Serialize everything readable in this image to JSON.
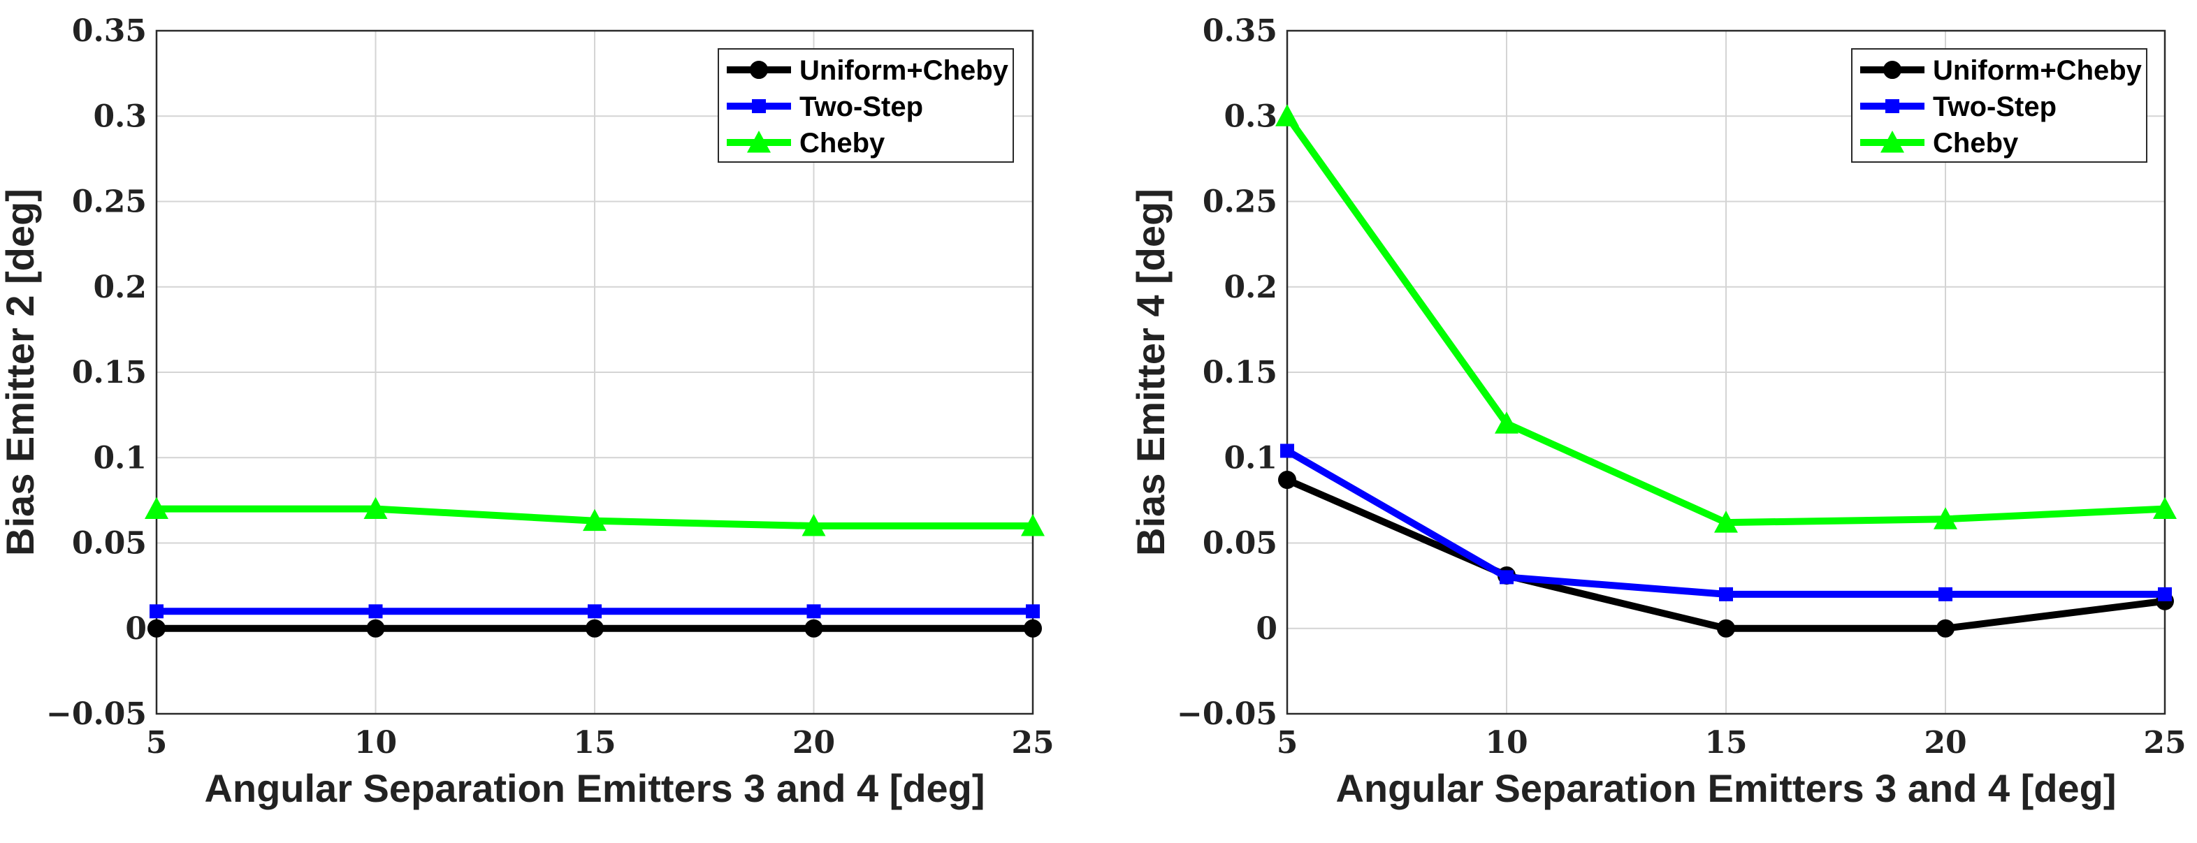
{
  "chart_data": [
    {
      "type": "line",
      "title": "",
      "xlabel": "Angular Separation Emitters 3 and 4 [deg]",
      "ylabel": "Bias Emitter 2 [deg]",
      "xlim": [
        5,
        25
      ],
      "ylim": [
        -0.05,
        0.35
      ],
      "x_ticks": [
        5,
        10,
        15,
        20,
        25
      ],
      "x_tick_labels": [
        "5",
        "10",
        "15",
        "20",
        "25"
      ],
      "y_ticks": [
        -0.05,
        0,
        0.05,
        0.1,
        0.15,
        0.2,
        0.25,
        0.3,
        0.35
      ],
      "y_tick_labels": [
        "−0.05",
        "0",
        "0.05",
        "0.1",
        "0.15",
        "0.2",
        "0.25",
        "0.3",
        "0.35"
      ],
      "grid": true,
      "legend_position": "top-right",
      "x": [
        5,
        10,
        15,
        20,
        25
      ],
      "series": [
        {
          "name": "Uniform+Cheby",
          "color": "#000000",
          "marker": "circle",
          "values": [
            0,
            0,
            0,
            0,
            0
          ]
        },
        {
          "name": "Two-Step",
          "color": "#0000ff",
          "marker": "square",
          "values": [
            0.01,
            0.01,
            0.01,
            0.01,
            0.01
          ]
        },
        {
          "name": "Cheby",
          "color": "#00ff00",
          "marker": "triangle",
          "values": [
            0.07,
            0.07,
            0.063,
            0.06,
            0.06
          ]
        }
      ]
    },
    {
      "type": "line",
      "title": "",
      "xlabel": "Angular Separation Emitters 3 and 4 [deg]",
      "ylabel": "Bias Emitter 4 [deg]",
      "xlim": [
        5,
        25
      ],
      "ylim": [
        -0.05,
        0.35
      ],
      "x_ticks": [
        5,
        10,
        15,
        20,
        25
      ],
      "x_tick_labels": [
        "5",
        "10",
        "15",
        "20",
        "25"
      ],
      "y_ticks": [
        -0.05,
        0,
        0.05,
        0.1,
        0.15,
        0.2,
        0.25,
        0.3,
        0.35
      ],
      "y_tick_labels": [
        "−0.05",
        "0",
        "0.05",
        "0.1",
        "0.15",
        "0.2",
        "0.25",
        "0.3",
        "0.35"
      ],
      "grid": true,
      "legend_position": "top-right",
      "x": [
        5,
        10,
        15,
        20,
        25
      ],
      "series": [
        {
          "name": "Uniform+Cheby",
          "color": "#000000",
          "marker": "circle",
          "values": [
            0.087,
            0.031,
            0,
            0,
            0.016
          ]
        },
        {
          "name": "Two-Step",
          "color": "#0000ff",
          "marker": "square",
          "values": [
            0.104,
            0.03,
            0.02,
            0.02,
            0.02
          ]
        },
        {
          "name": "Cheby",
          "color": "#00ff00",
          "marker": "triangle",
          "values": [
            0.3,
            0.12,
            0.062,
            0.064,
            0.07
          ]
        }
      ]
    }
  ]
}
